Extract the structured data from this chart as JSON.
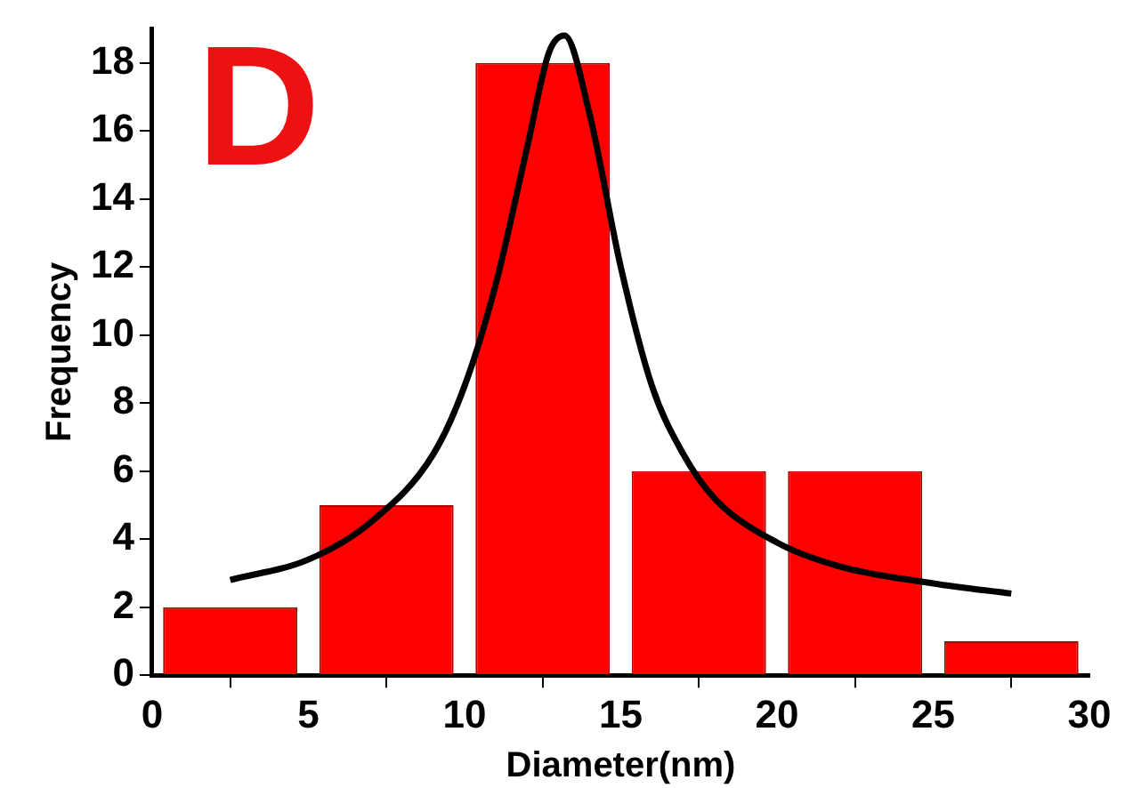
{
  "chart_data": {
    "type": "histogram",
    "xlabel": "Diameter(nm)",
    "ylabel": "Frequency",
    "annotations": [
      "D"
    ],
    "bins": [
      0,
      5,
      10,
      15,
      20,
      25,
      30
    ],
    "values": [
      2,
      5,
      18,
      6,
      6,
      1
    ],
    "color": "#ff0000",
    "series": [
      {
        "type": "line",
        "color": "#000000",
        "x": [
          2.5,
          5,
          7,
          9,
          10,
          11,
          12,
          12.7,
          13.2,
          14,
          15,
          16,
          17,
          18,
          20,
          22,
          25,
          27.5
        ],
        "values": [
          2.8,
          3.4,
          4.5,
          6.5,
          8.5,
          11.5,
          15.5,
          18.3,
          18.8,
          16.5,
          12,
          8.5,
          6.5,
          5.2,
          3.9,
          3.2,
          2.7,
          2.4
        ]
      }
    ],
    "xlim": [
      0,
      30
    ],
    "xticks": [
      0,
      5,
      10,
      15,
      20,
      25,
      30
    ],
    "ylim": [
      0,
      19
    ],
    "yticks": [
      0,
      2,
      4,
      6,
      8,
      10,
      12,
      14,
      16,
      18
    ],
    "grid": false,
    "legend": false,
    "marker": "none",
    "line_style": "solid"
  }
}
